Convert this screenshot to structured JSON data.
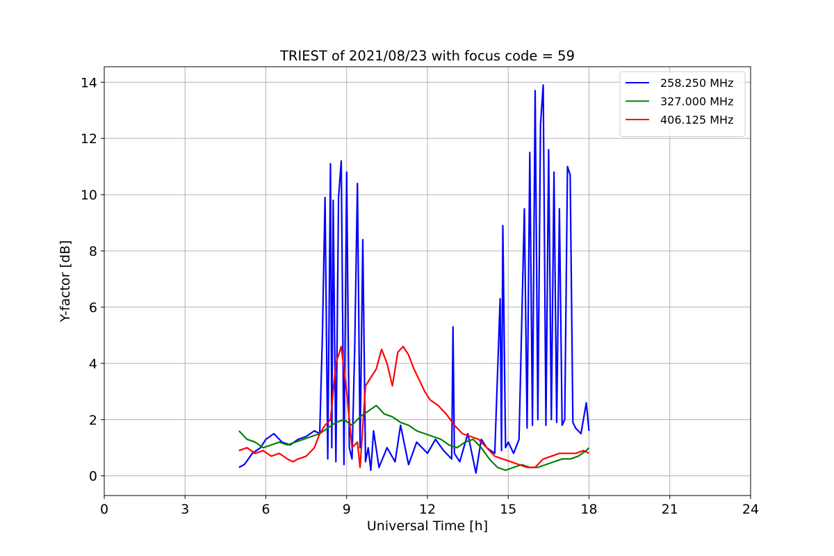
{
  "chart_data": {
    "type": "line",
    "title": "TRIEST of 2021/08/23 with focus code = 59",
    "xlabel": "Universal Time [h]",
    "ylabel": "Y-factor [dB]",
    "xlim": [
      0,
      24
    ],
    "ylim": [
      -0.7,
      14.55
    ],
    "xticks": [
      0,
      3,
      6,
      9,
      12,
      15,
      18,
      21,
      24
    ],
    "yticks": [
      0,
      2,
      4,
      6,
      8,
      10,
      12,
      14
    ],
    "grid": true,
    "legend_position": "top-right",
    "series": [
      {
        "name": "258.250 MHz",
        "color": "#0000ff",
        "x": [
          5.0,
          5.2,
          5.5,
          5.8,
          6.0,
          6.3,
          6.6,
          6.9,
          7.2,
          7.5,
          7.8,
          8.0,
          8.1,
          8.2,
          8.3,
          8.4,
          8.45,
          8.5,
          8.6,
          8.7,
          8.8,
          8.9,
          9.0,
          9.1,
          9.2,
          9.3,
          9.4,
          9.5,
          9.6,
          9.7,
          9.8,
          9.9,
          10.0,
          10.2,
          10.5,
          10.8,
          11.0,
          11.3,
          11.6,
          12.0,
          12.3,
          12.6,
          12.9,
          12.95,
          13.0,
          13.2,
          13.5,
          13.8,
          14.0,
          14.2,
          14.5,
          14.7,
          14.75,
          14.8,
          14.9,
          15.0,
          15.2,
          15.4,
          15.6,
          15.7,
          15.8,
          15.9,
          16.0,
          16.1,
          16.2,
          16.3,
          16.4,
          16.5,
          16.6,
          16.7,
          16.8,
          16.9,
          17.0,
          17.1,
          17.2,
          17.3,
          17.4,
          17.5,
          17.7,
          17.9,
          18.0
        ],
        "values": [
          0.3,
          0.4,
          0.8,
          1.0,
          1.3,
          1.5,
          1.2,
          1.1,
          1.3,
          1.4,
          1.6,
          1.5,
          5.0,
          9.9,
          0.6,
          11.1,
          1.0,
          9.8,
          0.5,
          9.9,
          11.2,
          0.4,
          10.8,
          1.0,
          0.6,
          4.6,
          10.4,
          1.0,
          8.4,
          0.5,
          1.0,
          0.2,
          1.6,
          0.3,
          1.0,
          0.5,
          1.8,
          0.4,
          1.2,
          0.8,
          1.3,
          0.9,
          0.6,
          5.3,
          0.8,
          0.5,
          1.5,
          0.1,
          1.3,
          1.0,
          0.8,
          6.3,
          0.9,
          8.9,
          1.0,
          1.2,
          0.8,
          1.3,
          9.5,
          1.7,
          11.5,
          1.8,
          13.7,
          2.0,
          12.5,
          13.9,
          1.8,
          11.6,
          2.0,
          10.8,
          1.9,
          9.5,
          1.8,
          2.0,
          11.0,
          10.7,
          1.9,
          1.7,
          1.5,
          2.6,
          1.6
        ]
      },
      {
        "name": "327.000 MHz",
        "color": "#008000",
        "x": [
          5.0,
          5.3,
          5.6,
          5.9,
          6.2,
          6.5,
          6.8,
          7.1,
          7.4,
          7.7,
          8.0,
          8.3,
          8.6,
          8.9,
          9.2,
          9.5,
          9.8,
          10.1,
          10.4,
          10.7,
          11.0,
          11.3,
          11.6,
          11.9,
          12.2,
          12.5,
          12.8,
          13.1,
          13.4,
          13.7,
          14.0,
          14.3,
          14.6,
          14.9,
          15.2,
          15.5,
          15.8,
          16.1,
          16.4,
          16.7,
          17.0,
          17.3,
          17.6,
          17.9,
          18.0
        ],
        "values": [
          1.6,
          1.3,
          1.2,
          1.0,
          1.1,
          1.2,
          1.1,
          1.2,
          1.3,
          1.4,
          1.5,
          1.7,
          1.9,
          2.0,
          1.8,
          2.1,
          2.3,
          2.5,
          2.2,
          2.1,
          1.9,
          1.8,
          1.6,
          1.5,
          1.4,
          1.3,
          1.1,
          1.0,
          1.2,
          1.3,
          1.0,
          0.6,
          0.3,
          0.2,
          0.3,
          0.4,
          0.3,
          0.3,
          0.4,
          0.5,
          0.6,
          0.6,
          0.7,
          0.9,
          1.0
        ]
      },
      {
        "name": "406.125 MHz",
        "color": "#ff0000",
        "x": [
          5.0,
          5.3,
          5.6,
          5.9,
          6.2,
          6.5,
          6.8,
          7.0,
          7.2,
          7.5,
          7.8,
          8.0,
          8.2,
          8.4,
          8.6,
          8.8,
          9.0,
          9.2,
          9.4,
          9.5,
          9.7,
          9.9,
          10.1,
          10.3,
          10.5,
          10.7,
          10.9,
          11.1,
          11.3,
          11.5,
          11.7,
          11.9,
          12.1,
          12.4,
          12.7,
          13.0,
          13.3,
          13.6,
          13.9,
          14.2,
          14.5,
          14.8,
          15.1,
          15.4,
          15.7,
          16.0,
          16.3,
          16.6,
          16.9,
          17.2,
          17.5,
          17.8,
          18.0
        ],
        "values": [
          0.9,
          1.0,
          0.8,
          0.9,
          0.7,
          0.8,
          0.6,
          0.5,
          0.6,
          0.7,
          1.0,
          1.5,
          1.8,
          2.0,
          4.0,
          4.6,
          3.0,
          1.0,
          1.2,
          0.3,
          3.2,
          3.5,
          3.8,
          4.5,
          4.0,
          3.2,
          4.4,
          4.6,
          4.3,
          3.8,
          3.4,
          3.0,
          2.7,
          2.5,
          2.2,
          1.8,
          1.5,
          1.4,
          1.3,
          1.0,
          0.7,
          0.6,
          0.5,
          0.4,
          0.3,
          0.3,
          0.6,
          0.7,
          0.8,
          0.8,
          0.8,
          0.9,
          0.8
        ]
      }
    ]
  }
}
